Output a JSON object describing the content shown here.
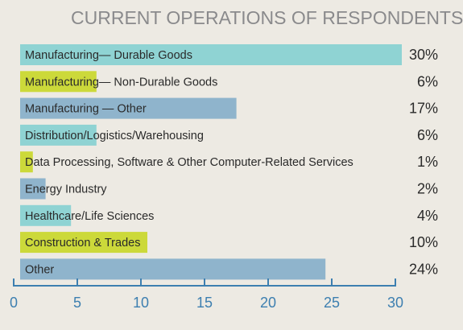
{
  "chart_data": {
    "type": "bar",
    "orientation": "horizontal",
    "title": "CURRENT OPERATIONS OF RESPONDENTS:",
    "categories": [
      "Manufacturing— Durable Goods",
      "Manufacturing— Non-Durable Goods",
      "Manufacturing — Other",
      "Distribution/Logistics/Warehousing",
      "Data Processing, Software & Other Computer-Related Services",
      "Energy Industry",
      "Healthcare/Life Sciences",
      "Construction & Trades",
      "Other"
    ],
    "values": [
      30,
      6,
      17,
      6,
      1,
      2,
      4,
      10,
      24
    ],
    "value_labels": [
      "30%",
      "6%",
      "17%",
      "6%",
      "1%",
      "2%",
      "4%",
      "10%",
      "24%"
    ],
    "bar_colors": [
      "#8fd3d3",
      "#ccd93a",
      "#8fb4cc",
      "#8fd3d3",
      "#ccd93a",
      "#8fb4cc",
      "#8fd3d3",
      "#ccd93a",
      "#8fb4cc"
    ],
    "x_ticks": [
      0,
      5,
      10,
      15,
      20,
      25,
      30
    ],
    "xlim": [
      0,
      30
    ],
    "axis_color": "#3d7fb0",
    "grid": false,
    "legend": "none"
  }
}
